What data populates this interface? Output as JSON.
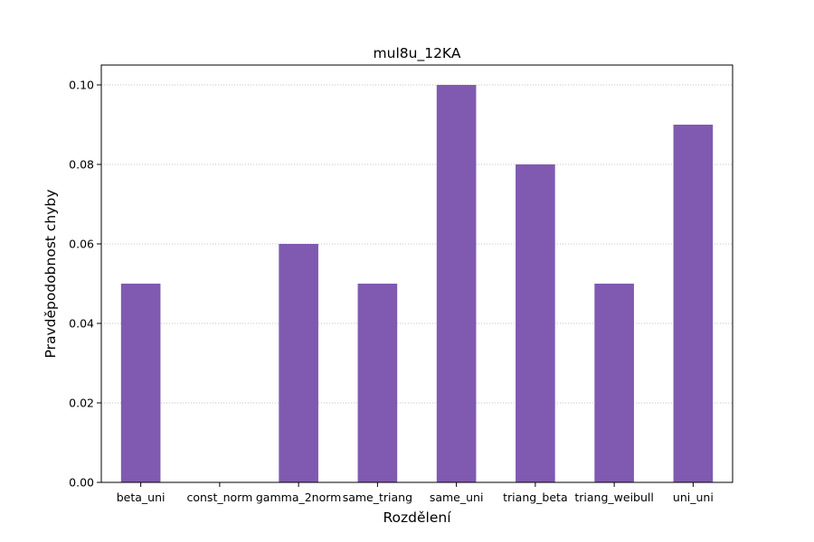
{
  "chart_data": {
    "type": "bar",
    "title": "mul8u_12KA",
    "xlabel": "Rozdělení",
    "ylabel": "Pravděpodobnost chyby",
    "categories": [
      "beta_uni",
      "const_norm",
      "gamma_2norm",
      "same_triang",
      "same_uni",
      "triang_beta",
      "triang_weibull",
      "uni_uni"
    ],
    "values": [
      0.05,
      0.0,
      0.06,
      0.05,
      0.1,
      0.08,
      0.05,
      0.09
    ],
    "ylim": [
      0,
      0.105
    ],
    "yticks": [
      0.0,
      0.02,
      0.04,
      0.06,
      0.08,
      0.1
    ],
    "ytick_labels": [
      "0.00",
      "0.02",
      "0.04",
      "0.06",
      "0.08",
      "0.10"
    ],
    "grid": "y-dotted",
    "bar_color": "#7f5ab0"
  }
}
